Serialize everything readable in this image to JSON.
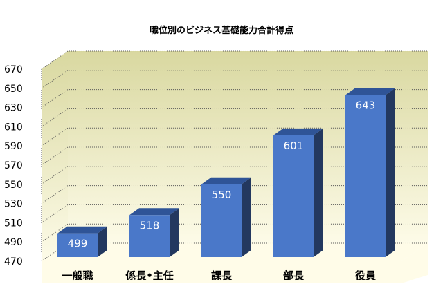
{
  "chart_data": {
    "type": "bar",
    "title": "職位別のビジネス基礎能力合計得点",
    "categories": [
      "一般職",
      "係長•主任",
      "課長",
      "部長",
      "役員"
    ],
    "series": [
      {
        "values": [
          499,
          518,
          550,
          601,
          643
        ]
      }
    ],
    "ylim": [
      470,
      670
    ],
    "yticks": [
      470,
      490,
      510,
      530,
      550,
      570,
      590,
      610,
      630,
      650,
      670
    ],
    "grid": true,
    "data_labels": true,
    "colors": {
      "bar_front": "#4a78c9",
      "bar_side": "#23385f",
      "bar_top": "#2f5497",
      "wall_top": "#d9d8a0",
      "wall_bottom": "#fdfbe8",
      "floor": "#fffce8",
      "grid": "#555555",
      "label": "#ffffff"
    }
  }
}
